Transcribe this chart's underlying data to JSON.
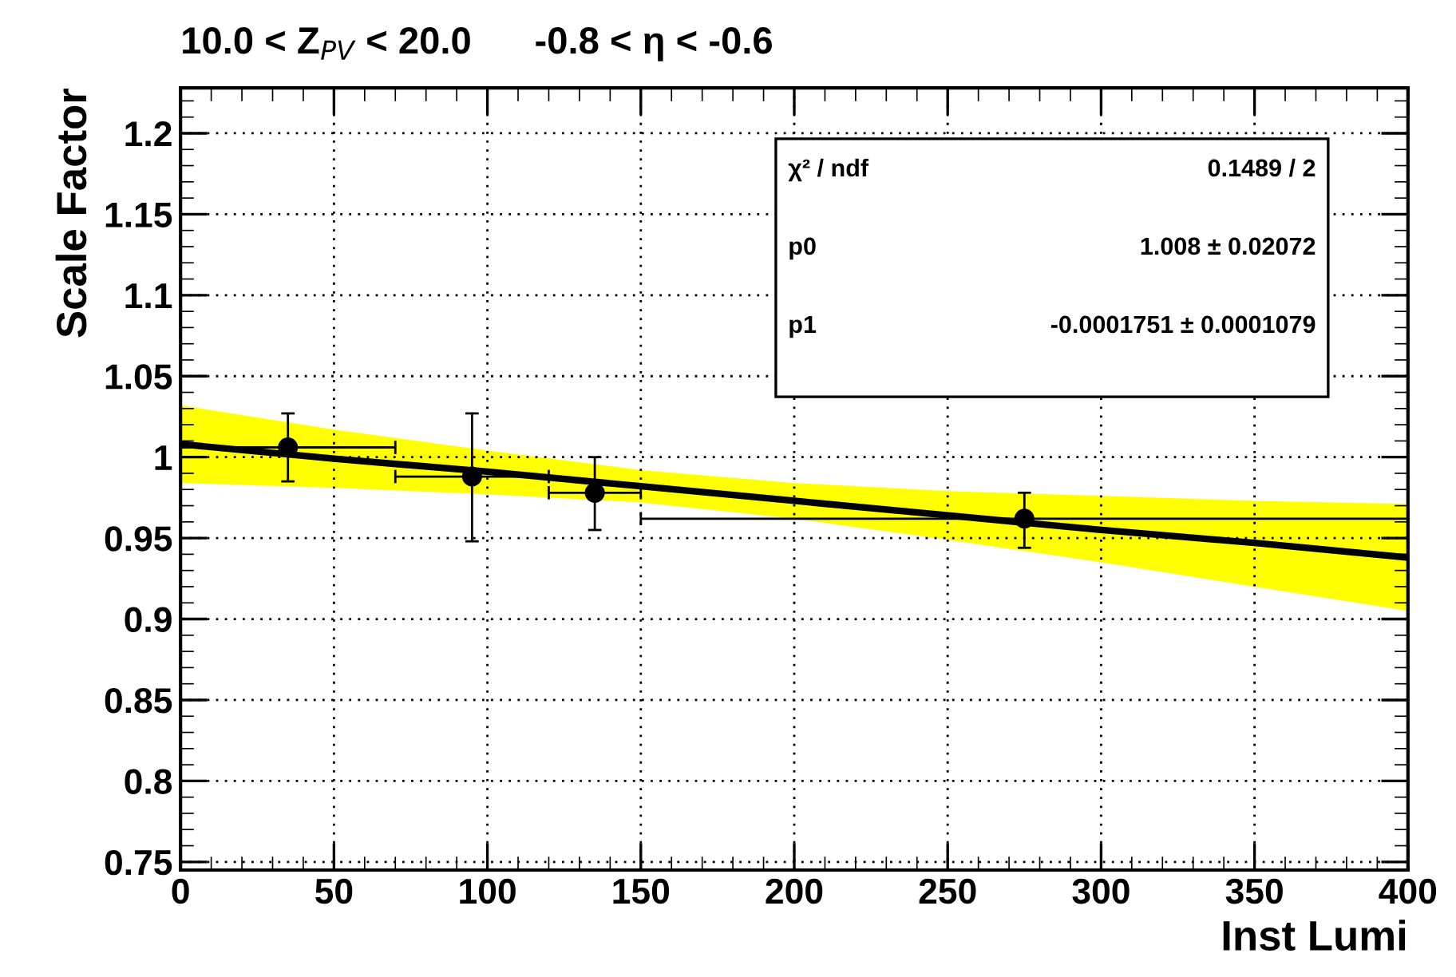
{
  "chart_data": {
    "type": "scatter",
    "title": "10.0 < Z$_{PV}$ < 20.0      -0.8 < η < -0.6",
    "xlabel": "Inst Lumi",
    "ylabel": "Scale Factor",
    "xlim": [
      0,
      400
    ],
    "xticks": [
      0,
      50,
      100,
      150,
      200,
      250,
      300,
      350,
      400
    ],
    "ylim": [
      0.745,
      1.228
    ],
    "yticks": [
      0.75,
      0.8,
      0.85,
      0.9,
      0.95,
      1,
      1.05,
      1.1,
      1.15,
      1.2
    ],
    "grid": true,
    "series": [
      {
        "type": "line",
        "color": "#000000",
        "x": [
          0,
          50,
          100,
          150,
          200,
          250,
          300,
          350,
          400
        ],
        "values": [
          1.008,
          0.999,
          0.991,
          0.982,
          0.973,
          0.964,
          0.955,
          0.947,
          0.938
        ],
        "lower": [
          0.984,
          0.981,
          0.977,
          0.972,
          0.962,
          0.949,
          0.935,
          0.92,
          0.905
        ],
        "upper": [
          1.032,
          1.017,
          1.004,
          0.992,
          0.984,
          0.979,
          0.976,
          0.973,
          0.971
        ],
        "marker": "none"
      },
      {
        "color": "#000000",
        "marker": "circle",
        "x": [
          35,
          95,
          135,
          275
        ],
        "values": [
          1.006,
          0.988,
          0.978,
          0.962
        ],
        "errors": [
          [
            0.985,
            1.027
          ],
          [
            0.948,
            1.027
          ],
          [
            0.955,
            1.0
          ],
          [
            0.944,
            0.978
          ]
        ],
        "xerrors": [
          [
            0,
            70
          ],
          [
            70,
            120
          ],
          [
            120,
            150
          ],
          [
            150,
            400
          ]
        ]
      }
    ],
    "annotations": [
      "χ² / ndf",
      "0.1489 / 2",
      "p0",
      "1.008 ± 0.02072",
      "p1",
      "-0.0001751 ± 0.0001079"
    ]
  }
}
